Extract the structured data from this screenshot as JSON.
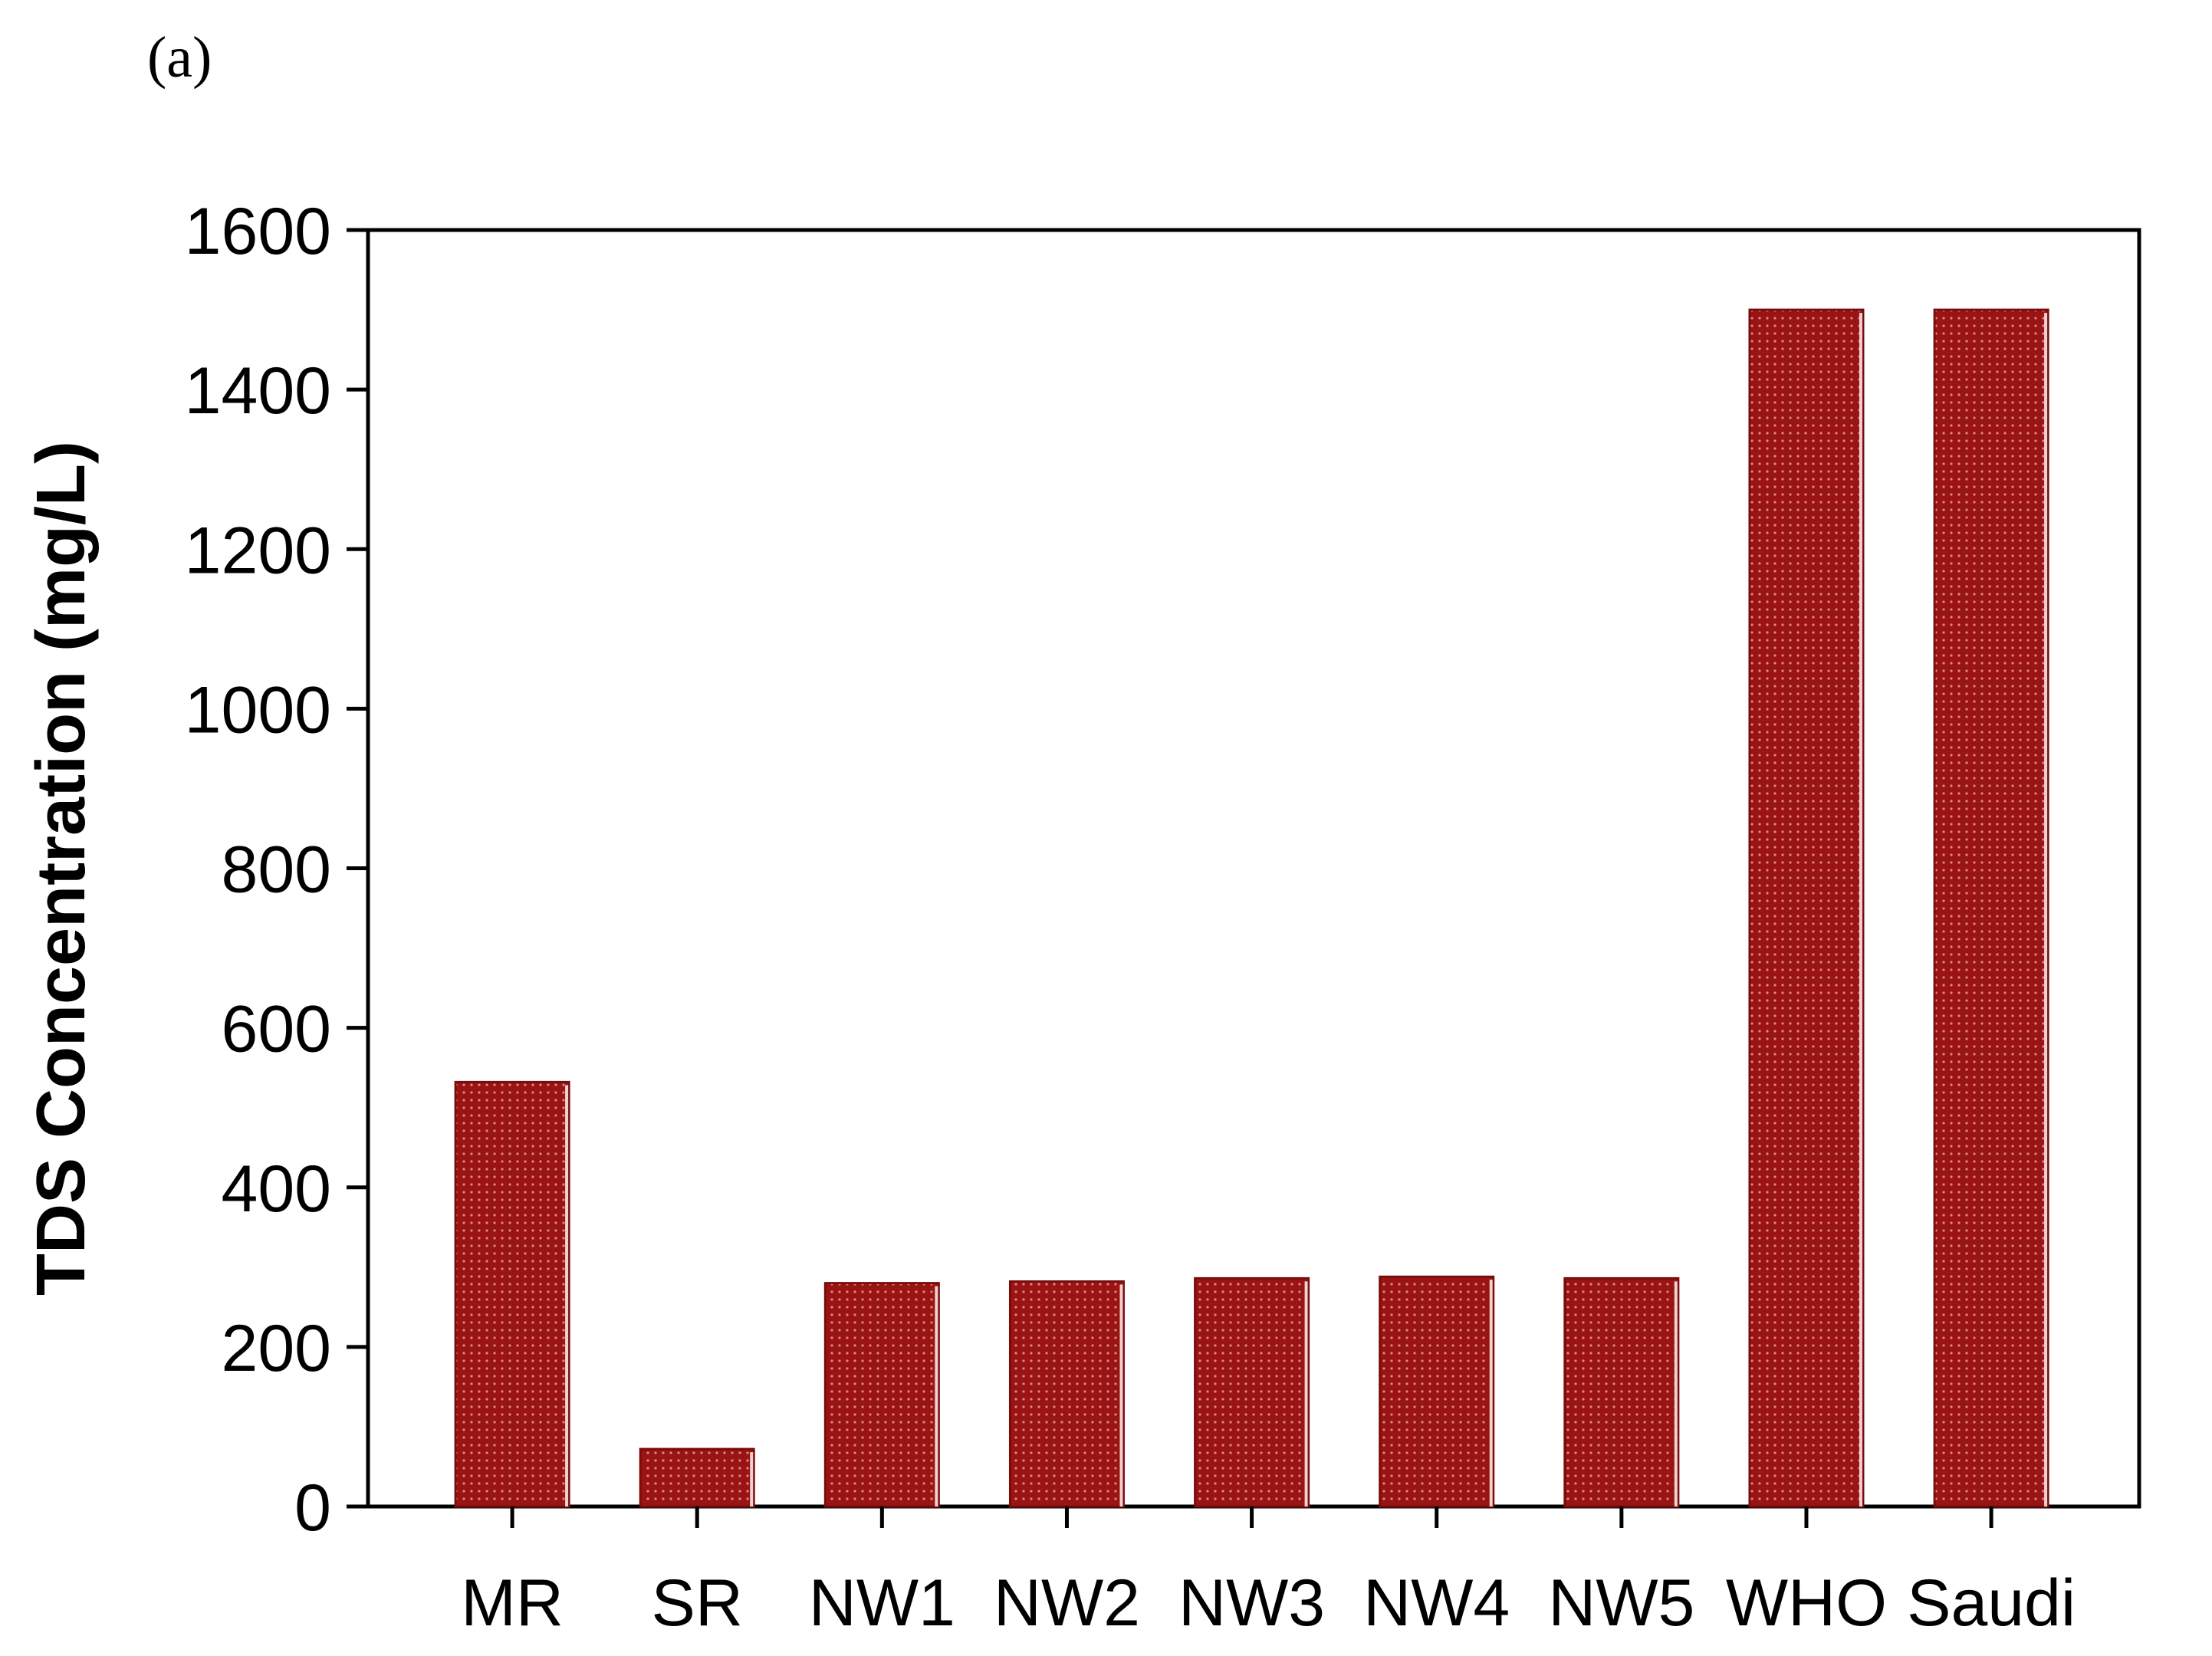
{
  "panel_label": "(a)",
  "chart_data": {
    "type": "bar",
    "title": "",
    "xlabel": "",
    "ylabel": "TDS Concentration (mg/L)",
    "categories": [
      "MR",
      "SR",
      "NW1",
      "NW2",
      "NW3",
      "NW4",
      "NW5",
      "WHO",
      "Saudi"
    ],
    "values": [
      532,
      72,
      280,
      282,
      286,
      288,
      286,
      1500,
      1500
    ],
    "ylim": [
      0,
      1600
    ],
    "yticks": [
      0,
      200,
      400,
      600,
      800,
      1000,
      1200,
      1400,
      1600
    ],
    "grid": false,
    "legend": "none",
    "bar_color": "#9b1414",
    "bar_pattern": "dotted"
  }
}
